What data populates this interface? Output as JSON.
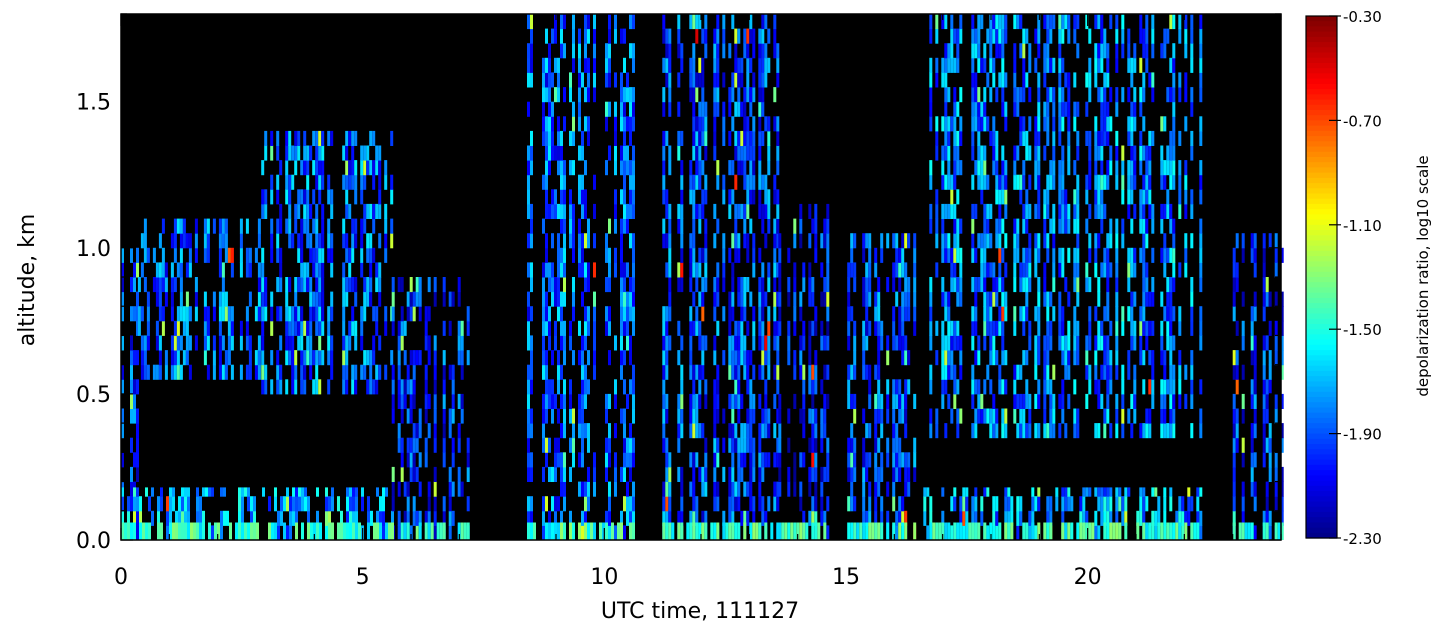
{
  "chart_data": {
    "type": "heatmap",
    "xlabel": "UTC time, 111127",
    "ylabel": "altitude, km",
    "xlim": [
      0,
      24
    ],
    "ylim": [
      0,
      1.8
    ],
    "x_ticks": [
      "0",
      "5",
      "10",
      "15",
      "20"
    ],
    "x_tick_values": [
      0,
      5,
      10,
      15,
      20
    ],
    "y_ticks": [
      "0.0",
      "0.5",
      "1.0",
      "1.5"
    ],
    "y_tick_values": [
      0.0,
      0.5,
      1.0,
      1.5
    ],
    "colorbar": {
      "label": "depolarization ratio, log10 scale",
      "ticks": [
        "-0.30",
        "-0.70",
        "-1.10",
        "-1.50",
        "-1.90",
        "-2.30"
      ],
      "tick_values": [
        -0.3,
        -0.7,
        -1.1,
        -1.5,
        -1.9,
        -2.3
      ],
      "range": [
        -2.3,
        -0.3
      ],
      "colormap": "jet"
    },
    "background_color": "#000000",
    "bands": [
      {
        "t0": 0.0,
        "t1": 0.35,
        "base": 0.0,
        "top": 1.0,
        "level": -1.95
      },
      {
        "t0": 0.35,
        "t1": 2.9,
        "base": 0.55,
        "top": 1.1,
        "level": -1.85
      },
      {
        "t0": 0.0,
        "t1": 5.6,
        "base": 0.0,
        "top": 0.18,
        "level": -1.75
      },
      {
        "t0": 2.9,
        "t1": 5.6,
        "base": 0.5,
        "top": 1.4,
        "level": -1.85
      },
      {
        "t0": 5.6,
        "t1": 7.2,
        "base": 0.0,
        "top": 0.9,
        "level": -1.95
      },
      {
        "t0": 8.4,
        "t1": 10.6,
        "base": 0.0,
        "top": 1.8,
        "level": -1.85
      },
      {
        "t0": 11.2,
        "t1": 13.6,
        "base": 0.0,
        "top": 1.8,
        "level": -1.9
      },
      {
        "t0": 13.6,
        "t1": 14.6,
        "base": 0.0,
        "top": 1.15,
        "level": -2.0
      },
      {
        "t0": 14.9,
        "t1": 16.4,
        "base": 0.0,
        "top": 1.05,
        "level": -1.9
      },
      {
        "t0": 16.6,
        "t1": 22.4,
        "base": 0.35,
        "top": 1.8,
        "level": -1.8
      },
      {
        "t0": 16.6,
        "t1": 22.4,
        "base": 0.0,
        "top": 0.18,
        "level": -1.75
      },
      {
        "t0": 23.0,
        "t1": 24.0,
        "base": 0.0,
        "top": 1.05,
        "level": -1.95
      }
    ],
    "surface_layer": {
      "top": 0.06,
      "level": -1.45
    }
  }
}
